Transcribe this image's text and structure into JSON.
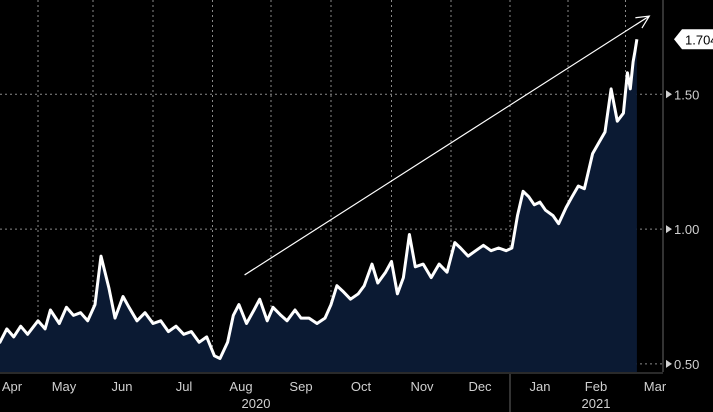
{
  "colors": {
    "background": "#000000",
    "line": "#ffffff",
    "area_fill": "#0b1a33",
    "grid": "#8a8a8a",
    "axis_text": "#d0d0d0",
    "arrow": "#ffffff",
    "last_label_bg": "#ffffff",
    "last_label_text": "#000000"
  },
  "chart_data": {
    "type": "area",
    "title": "",
    "xlabel": "",
    "ylabel": "",
    "ylim": [
      0.47,
      1.82
    ],
    "y_ticks": [
      0.5,
      1.0,
      1.5
    ],
    "y_tick_labels": [
      "0.50",
      "1.00",
      "1.50"
    ],
    "grid": true,
    "x_month_labels": [
      "Apr",
      "May",
      "Jun",
      "Jul",
      "Aug",
      "Sep",
      "Oct",
      "Nov",
      "Dec",
      "Jan",
      "Feb",
      "Mar"
    ],
    "x_year_labels": [
      {
        "label": "2020",
        "month": "Aug"
      },
      {
        "label": "2021",
        "month": "Feb"
      }
    ],
    "last_value_label": "1.704",
    "annotation": {
      "type": "trend-arrow",
      "from": [
        "2020-08-18",
        0.83
      ],
      "to": [
        "2021-03-26",
        1.79
      ]
    },
    "series": [
      {
        "values": [
          [
            "2020-04-01",
            0.76
          ],
          [
            "2020-04-05",
            0.62
          ],
          [
            "2020-04-09",
            0.58
          ],
          [
            "2020-04-13",
            0.63
          ],
          [
            "2020-04-17",
            0.6
          ],
          [
            "2020-04-21",
            0.64
          ],
          [
            "2020-04-25",
            0.61
          ],
          [
            "2020-05-01",
            0.66
          ],
          [
            "2020-05-05",
            0.63
          ],
          [
            "2020-05-08",
            0.7
          ],
          [
            "2020-05-13",
            0.65
          ],
          [
            "2020-05-17",
            0.71
          ],
          [
            "2020-05-21",
            0.68
          ],
          [
            "2020-05-25",
            0.69
          ],
          [
            "2020-05-29",
            0.66
          ],
          [
            "2020-06-02",
            0.72
          ],
          [
            "2020-06-05",
            0.9
          ],
          [
            "2020-06-09",
            0.78
          ],
          [
            "2020-06-12",
            0.67
          ],
          [
            "2020-06-16",
            0.75
          ],
          [
            "2020-06-19",
            0.71
          ],
          [
            "2020-06-23",
            0.66
          ],
          [
            "2020-06-27",
            0.69
          ],
          [
            "2020-07-01",
            0.65
          ],
          [
            "2020-07-05",
            0.66
          ],
          [
            "2020-07-09",
            0.62
          ],
          [
            "2020-07-13",
            0.64
          ],
          [
            "2020-07-17",
            0.61
          ],
          [
            "2020-07-21",
            0.62
          ],
          [
            "2020-07-25",
            0.58
          ],
          [
            "2020-07-29",
            0.6
          ],
          [
            "2020-08-02",
            0.53
          ],
          [
            "2020-08-05",
            0.52
          ],
          [
            "2020-08-09",
            0.58
          ],
          [
            "2020-08-12",
            0.68
          ],
          [
            "2020-08-15",
            0.72
          ],
          [
            "2020-08-19",
            0.65
          ],
          [
            "2020-08-23",
            0.7
          ],
          [
            "2020-08-26",
            0.74
          ],
          [
            "2020-08-30",
            0.66
          ],
          [
            "2020-09-02",
            0.71
          ],
          [
            "2020-09-06",
            0.68
          ],
          [
            "2020-09-09",
            0.66
          ],
          [
            "2020-09-13",
            0.7
          ],
          [
            "2020-09-16",
            0.67
          ],
          [
            "2020-09-20",
            0.67
          ],
          [
            "2020-09-24",
            0.65
          ],
          [
            "2020-09-28",
            0.67
          ],
          [
            "2020-10-01",
            0.72
          ],
          [
            "2020-10-04",
            0.79
          ],
          [
            "2020-10-07",
            0.77
          ],
          [
            "2020-10-11",
            0.74
          ],
          [
            "2020-10-15",
            0.76
          ],
          [
            "2020-10-18",
            0.79
          ],
          [
            "2020-10-22",
            0.87
          ],
          [
            "2020-10-25",
            0.8
          ],
          [
            "2020-10-29",
            0.84
          ],
          [
            "2020-11-01",
            0.88
          ],
          [
            "2020-11-04",
            0.76
          ],
          [
            "2020-11-07",
            0.82
          ],
          [
            "2020-11-10",
            0.98
          ],
          [
            "2020-11-13",
            0.86
          ],
          [
            "2020-11-17",
            0.87
          ],
          [
            "2020-11-21",
            0.82
          ],
          [
            "2020-11-25",
            0.87
          ],
          [
            "2020-11-29",
            0.84
          ],
          [
            "2020-12-03",
            0.95
          ],
          [
            "2020-12-06",
            0.93
          ],
          [
            "2020-12-10",
            0.9
          ],
          [
            "2020-12-14",
            0.92
          ],
          [
            "2020-12-18",
            0.94
          ],
          [
            "2020-12-22",
            0.92
          ],
          [
            "2020-12-26",
            0.93
          ],
          [
            "2020-12-30",
            0.92
          ],
          [
            "2021-01-02",
            0.93
          ],
          [
            "2021-01-05",
            1.05
          ],
          [
            "2021-01-08",
            1.14
          ],
          [
            "2021-01-11",
            1.12
          ],
          [
            "2021-01-14",
            1.09
          ],
          [
            "2021-01-17",
            1.1
          ],
          [
            "2021-01-20",
            1.07
          ],
          [
            "2021-01-24",
            1.05
          ],
          [
            "2021-01-27",
            1.02
          ],
          [
            "2021-01-31",
            1.08
          ],
          [
            "2021-02-03",
            1.12
          ],
          [
            "2021-02-06",
            1.16
          ],
          [
            "2021-02-09",
            1.15
          ],
          [
            "2021-02-13",
            1.28
          ],
          [
            "2021-02-16",
            1.32
          ],
          [
            "2021-02-19",
            1.36
          ],
          [
            "2021-02-22",
            1.52
          ],
          [
            "2021-02-25",
            1.4
          ],
          [
            "2021-02-28",
            1.43
          ],
          [
            "2021-03-03",
            1.58
          ],
          [
            "2021-03-06",
            1.52
          ],
          [
            "2021-03-09",
            1.62
          ],
          [
            "2021-03-11",
            1.66
          ],
          [
            "2021-03-13",
            1.704
          ]
        ]
      }
    ]
  }
}
